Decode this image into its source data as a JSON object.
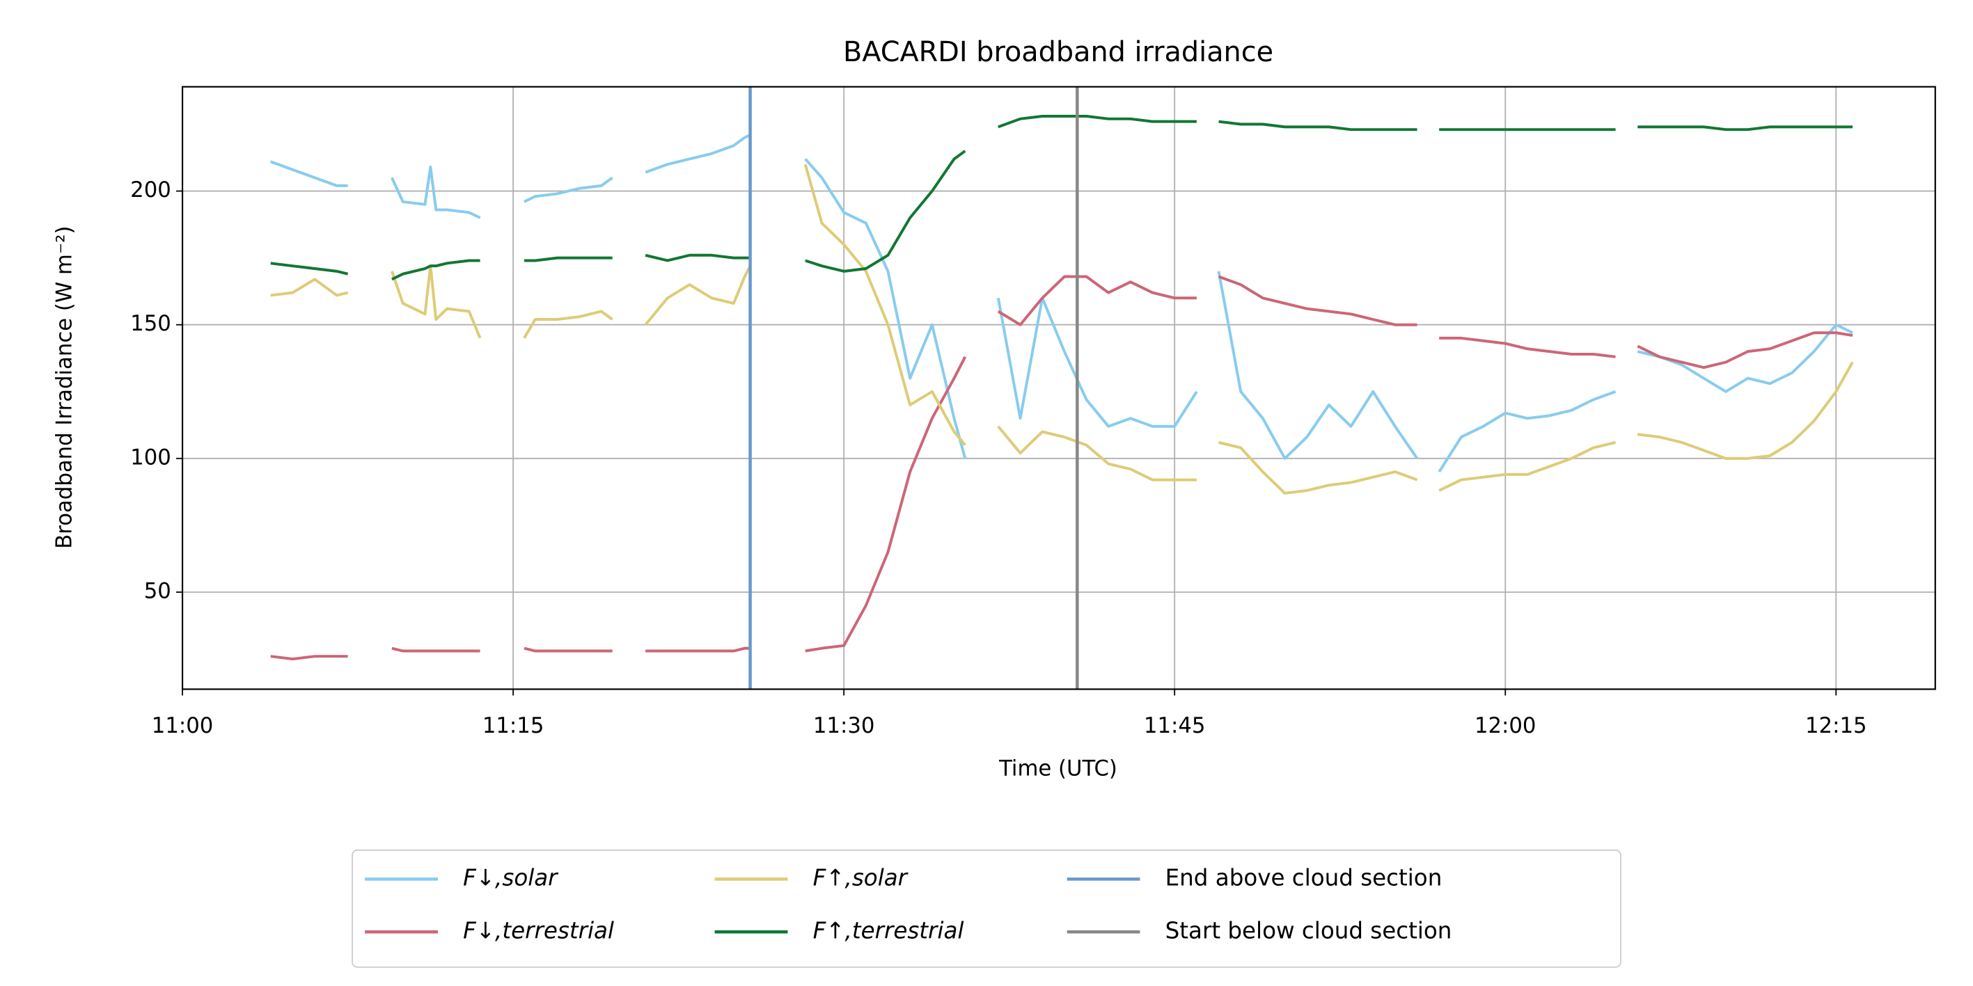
{
  "chart_data": {
    "type": "line",
    "title": "BACARDI broadband irradiance",
    "xlabel": "Time (UTC)",
    "ylabel": "Broadband Irradiance (W m⁻²)",
    "x": [
      "11:04:00",
      "11:05:00",
      "11:06:00",
      "11:07:00",
      "11:07:30",
      "11:08:30",
      "11:09:30",
      "11:10:00",
      "11:11:00",
      "11:11:15",
      "11:11:30",
      "11:12:00",
      "11:13:00",
      "11:13:30",
      "11:14:30",
      "11:15:30",
      "11:16:00",
      "11:17:00",
      "11:18:00",
      "11:19:00",
      "11:19:30",
      "11:20:15",
      "11:21:00",
      "11:22:00",
      "11:23:00",
      "11:24:00",
      "11:25:00",
      "11:25:30",
      "11:25:45",
      "11:27:00",
      "11:28:15",
      "11:29:00",
      "11:30:00",
      "11:31:00",
      "11:32:00",
      "11:33:00",
      "11:34:00",
      "11:35:00",
      "11:35:30",
      "11:36:15",
      "11:37:00",
      "11:38:00",
      "11:39:00",
      "11:40:00",
      "11:41:00",
      "11:42:00",
      "11:43:00",
      "11:44:00",
      "11:45:00",
      "11:46:00",
      "11:46:30",
      "11:47:00",
      "11:48:00",
      "11:49:00",
      "11:50:00",
      "11:51:00",
      "11:52:00",
      "11:53:00",
      "11:54:00",
      "11:55:00",
      "11:56:00",
      "11:56:30",
      "11:57:00",
      "11:58:00",
      "11:59:00",
      "12:00:00",
      "12:01:00",
      "12:02:00",
      "12:03:00",
      "12:04:00",
      "12:05:00",
      "12:05:30",
      "12:06:00",
      "12:07:00",
      "12:08:00",
      "12:09:00",
      "12:10:00",
      "12:11:00",
      "12:12:00",
      "12:13:00",
      "12:14:00",
      "12:15:00",
      "12:15:45"
    ],
    "series": [
      {
        "name": "F↓,solar",
        "color": "#88ccee",
        "values": [
          211,
          208,
          205,
          202,
          202,
          null,
          205,
          196,
          195,
          209,
          193,
          193,
          192,
          190,
          null,
          196,
          198,
          199,
          201,
          202,
          205,
          null,
          207,
          210,
          212,
          214,
          217,
          220,
          221,
          null,
          212,
          205,
          192,
          188,
          170,
          130,
          150,
          115,
          100,
          null,
          160,
          115,
          160,
          140,
          122,
          112,
          115,
          112,
          112,
          125,
          null,
          170,
          125,
          115,
          100,
          108,
          120,
          112,
          125,
          112,
          100,
          null,
          95,
          108,
          112,
          117,
          115,
          116,
          118,
          122,
          125,
          null,
          140,
          138,
          135,
          130,
          125,
          130,
          128,
          132,
          140,
          150,
          147
        ]
      },
      {
        "name": "F↓,terrestrial",
        "color": "#cc6677",
        "values": [
          26,
          25,
          26,
          26,
          26,
          null,
          29,
          28,
          28,
          28,
          28,
          28,
          28,
          28,
          null,
          29,
          28,
          28,
          28,
          28,
          28,
          null,
          28,
          28,
          28,
          28,
          28,
          29,
          29,
          null,
          28,
          29,
          30,
          45,
          65,
          95,
          115,
          130,
          138,
          null,
          155,
          150,
          160,
          168,
          168,
          162,
          166,
          162,
          160,
          160,
          null,
          168,
          165,
          160,
          158,
          156,
          155,
          154,
          152,
          150,
          150,
          null,
          145,
          145,
          144,
          143,
          141,
          140,
          139,
          139,
          138,
          null,
          142,
          138,
          136,
          134,
          136,
          140,
          141,
          144,
          147,
          147,
          146
        ]
      },
      {
        "name": "F↑,solar",
        "color": "#ddcc77",
        "values": [
          161,
          162,
          167,
          161,
          162,
          null,
          170,
          158,
          154,
          172,
          152,
          156,
          155,
          145,
          null,
          145,
          152,
          152,
          153,
          155,
          152,
          null,
          150,
          160,
          165,
          160,
          158,
          168,
          172,
          null,
          210,
          188,
          180,
          170,
          150,
          120,
          125,
          110,
          105,
          null,
          112,
          102,
          110,
          108,
          105,
          98,
          96,
          92,
          92,
          92,
          null,
          106,
          104,
          95,
          87,
          88,
          90,
          91,
          93,
          95,
          92,
          null,
          88,
          92,
          93,
          94,
          94,
          97,
          100,
          104,
          106,
          null,
          109,
          108,
          106,
          103,
          100,
          100,
          101,
          106,
          114,
          125,
          136
        ]
      },
      {
        "name": "F↑,terrestrial",
        "color": "#117733",
        "values": [
          173,
          172,
          171,
          170,
          169,
          null,
          167,
          169,
          171,
          172,
          172,
          173,
          174,
          174,
          null,
          174,
          174,
          175,
          175,
          175,
          175,
          null,
          176,
          174,
          176,
          176,
          175,
          175,
          175,
          null,
          174,
          172,
          170,
          171,
          176,
          190,
          200,
          212,
          215,
          null,
          224,
          227,
          228,
          228,
          228,
          227,
          227,
          226,
          226,
          226,
          null,
          226,
          225,
          225,
          224,
          224,
          224,
          223,
          223,
          223,
          223,
          null,
          223,
          223,
          223,
          223,
          223,
          223,
          223,
          223,
          223,
          null,
          224,
          224,
          224,
          224,
          223,
          223,
          224,
          224,
          224,
          224,
          224
        ]
      }
    ],
    "vlines": [
      {
        "name": "End above cloud section",
        "x": "11:25:45",
        "color": "#6699cc"
      },
      {
        "name": "Start below cloud section",
        "x": "11:40:35",
        "color": "#888888"
      }
    ],
    "xlim": [
      "11:00:00",
      "12:19:30"
    ],
    "xticks": [
      "11:00",
      "11:15",
      "11:30",
      "11:45",
      "12:00",
      "12:15"
    ],
    "ylim": [
      13.7,
      239
    ],
    "yticks": [
      50,
      100,
      150,
      200
    ],
    "grid": true,
    "legend": "bottom"
  }
}
